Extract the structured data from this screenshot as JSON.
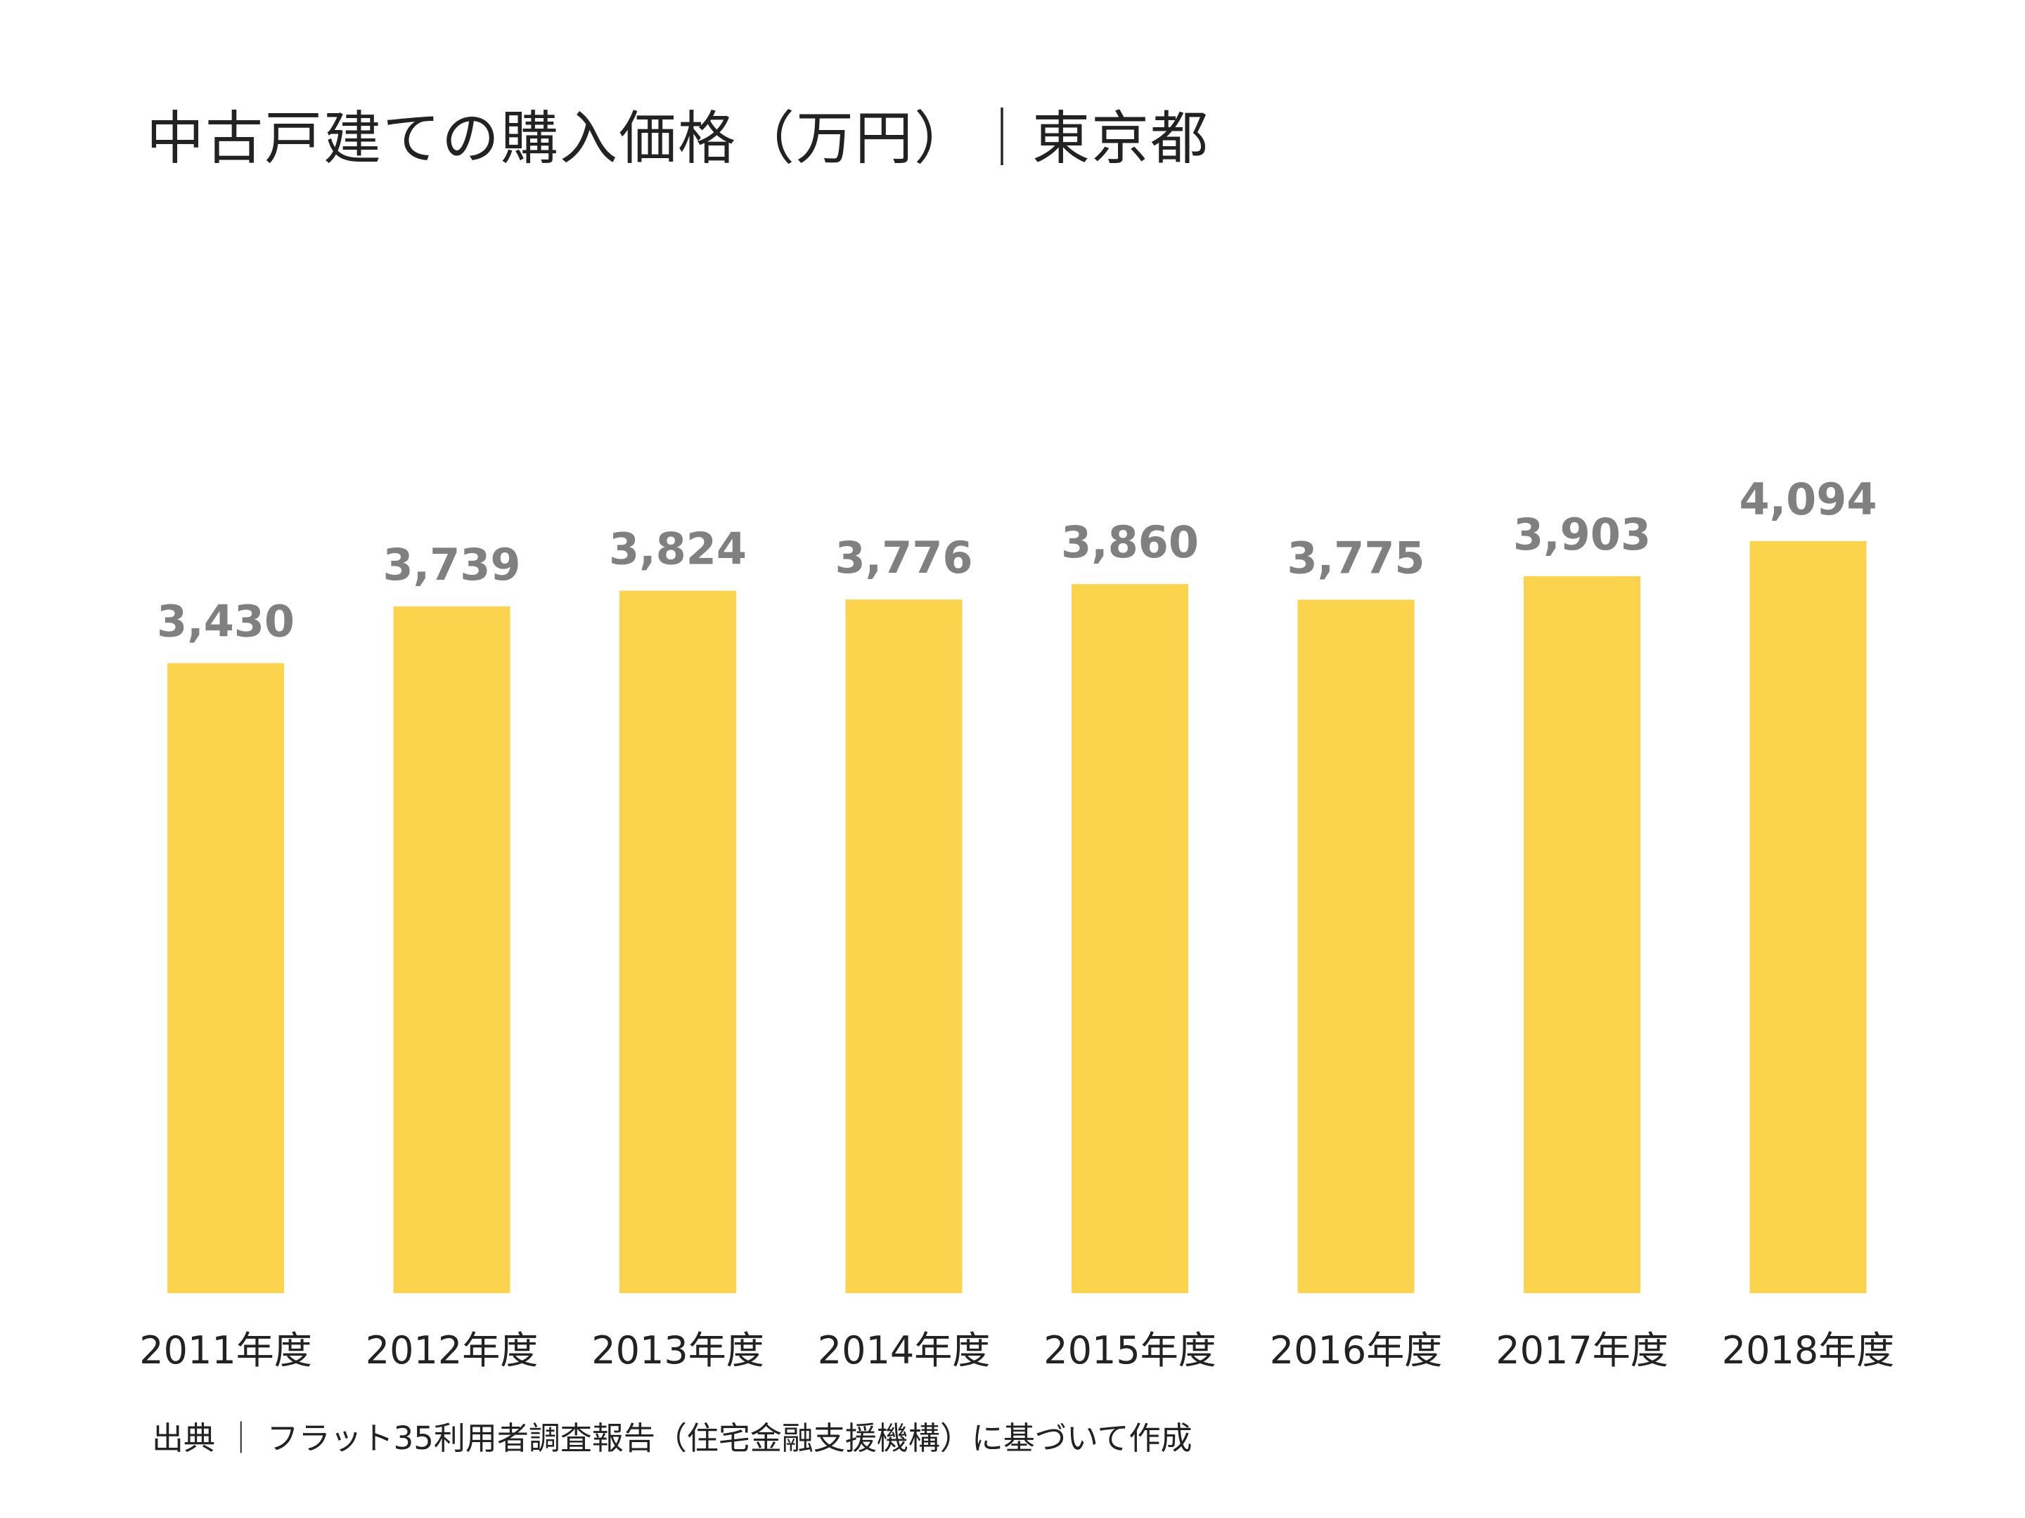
{
  "chart_data": {
    "type": "bar",
    "title": "中古戸建ての購入価格（万円）｜東京都",
    "categories": [
      "2011年度",
      "2012年度",
      "2013年度",
      "2014年度",
      "2015年度",
      "2016年度",
      "2017年度",
      "2018年度"
    ],
    "values": [
      3430,
      3739,
      3824,
      3776,
      3860,
      3775,
      3903,
      4094
    ],
    "value_labels": [
      "3,430",
      "3,739",
      "3,824",
      "3,776",
      "3,860",
      "3,775",
      "3,903",
      "4,094"
    ],
    "xlabel": "",
    "ylabel": "",
    "ylim": [
      0,
      4094
    ],
    "grid": false,
    "legend": "none",
    "source": "出典 ｜ フラット35利用者調査報告（住宅金融支援機構）に基づいて作成"
  },
  "colors": {
    "bar": "#FCD34D",
    "value_label": "#808080",
    "text": "#222222"
  }
}
